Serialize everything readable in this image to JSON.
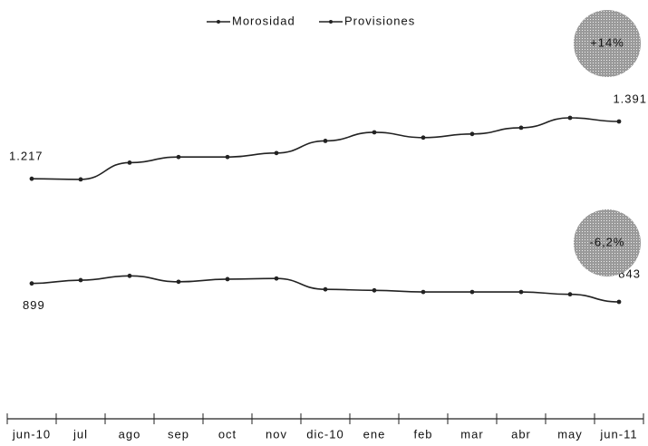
{
  "chart_data": {
    "type": "line",
    "categories": [
      "jun-10",
      "jul",
      "ago",
      "sep",
      "oct",
      "nov",
      "dic-10",
      "ene",
      "feb",
      "mar",
      "abr",
      "may",
      "jun-11"
    ],
    "series": [
      {
        "name": "Morosidad",
        "color": "#222222",
        "values": [
          1217,
          1215,
          1266,
          1283,
          1283,
          1295,
          1332,
          1358,
          1342,
          1353,
          1372,
          1402,
          1391
        ],
        "value_labels": [
          "1.217",
          null,
          null,
          null,
          null,
          null,
          null,
          null,
          null,
          null,
          null,
          null,
          "1.391"
        ]
      },
      {
        "name": "Provisiones",
        "color": "#222222",
        "values": [
          899,
          909,
          922,
          904,
          912,
          914,
          881,
          878,
          873,
          873,
          873,
          866,
          843
        ],
        "value_labels": [
          "899",
          null,
          null,
          null,
          null,
          null,
          null,
          null,
          null,
          null,
          null,
          null,
          "843"
        ]
      }
    ],
    "annotations": [
      "+14%",
      "-6,2%"
    ]
  }
}
